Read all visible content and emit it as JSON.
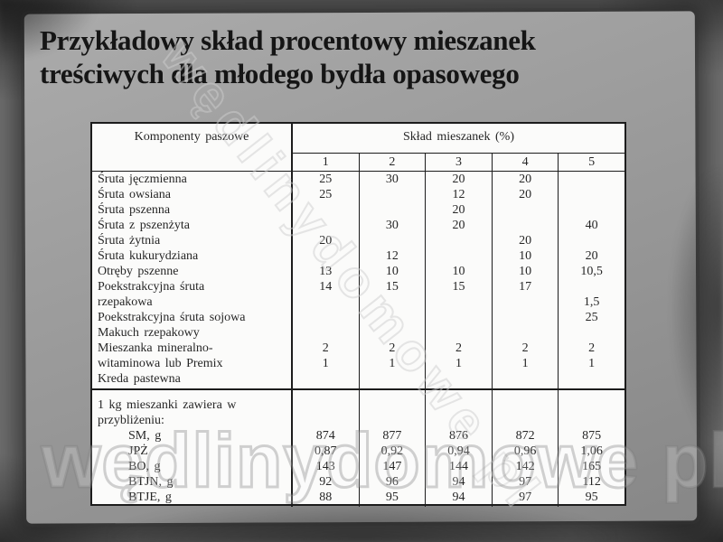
{
  "slide": {
    "title_line1": "Przykładowy skład procentowy mieszanek",
    "title_line2": "treściwych dla młodego bydła opasowego"
  },
  "table": {
    "col_header_left": "Komponenty paszowe",
    "col_header_right": "Skład mieszanek (%)",
    "mix_numbers": [
      "1",
      "2",
      "3",
      "4",
      "5"
    ],
    "section1_rows": [
      {
        "label": "Śruta jęczmienna",
        "indent": false,
        "values": [
          "25",
          "30",
          "20",
          "20",
          ""
        ]
      },
      {
        "label": "Śruta owsiana",
        "indent": false,
        "values": [
          "25",
          "",
          "12",
          "20",
          ""
        ]
      },
      {
        "label": "Śruta pszenna",
        "indent": false,
        "values": [
          "",
          "",
          "20",
          "",
          ""
        ]
      },
      {
        "label": "Śruta z pszenżyta",
        "indent": false,
        "values": [
          "",
          "30",
          "20",
          "",
          "40"
        ]
      },
      {
        "label": "Śruta żytnia",
        "indent": false,
        "values": [
          "20",
          "",
          "",
          "20",
          ""
        ]
      },
      {
        "label": "Śruta kukurydziana",
        "indent": false,
        "values": [
          "",
          "12",
          "",
          "10",
          "20"
        ]
      },
      {
        "label": "Otręby pszenne",
        "indent": false,
        "values": [
          "13",
          "10",
          "10",
          "10",
          "10,5"
        ]
      },
      {
        "label": "Poekstrakcyjna śruta",
        "indent": false,
        "values": [
          "14",
          "15",
          "15",
          "17",
          ""
        ]
      },
      {
        "label": "rzepakowa",
        "indent": false,
        "values": [
          "",
          "",
          "",
          "",
          "1,5"
        ]
      },
      {
        "label": "Poekstrakcyjna śruta sojowa",
        "indent": false,
        "values": [
          "",
          "",
          "",
          "",
          "25"
        ]
      },
      {
        "label": "Makuch rzepakowy",
        "indent": false,
        "values": [
          "",
          "",
          "",
          "",
          ""
        ]
      },
      {
        "label": "Mieszanka mineralno-",
        "indent": false,
        "values": [
          "2",
          "2",
          "2",
          "2",
          "2"
        ]
      },
      {
        "label": "witaminowa lub Premix",
        "indent": false,
        "values": [
          "1",
          "1",
          "1",
          "1",
          "1"
        ]
      },
      {
        "label": "Kreda pastewna",
        "indent": false,
        "values": [
          "",
          "",
          "",
          "",
          ""
        ]
      }
    ],
    "section2_rows": [
      {
        "label": "1 kg mieszanki zawiera w",
        "indent": false,
        "values": [
          "",
          "",
          "",
          "",
          ""
        ]
      },
      {
        "label": "przybliżeniu:",
        "indent": false,
        "values": [
          "",
          "",
          "",
          "",
          ""
        ]
      },
      {
        "label": "SM, g",
        "indent": true,
        "values": [
          "874",
          "877",
          "876",
          "872",
          "875"
        ]
      },
      {
        "label": "JPŻ",
        "indent": true,
        "values": [
          "0,87",
          "0,92",
          "0,94",
          "0,96",
          "1,06"
        ]
      },
      {
        "label": "BO, g",
        "indent": true,
        "values": [
          "143",
          "147",
          "144",
          "142",
          "165"
        ]
      },
      {
        "label": "BTJN, g",
        "indent": true,
        "values": [
          "92",
          "96",
          "94",
          "97",
          "112"
        ]
      },
      {
        "label": "BTJE, g",
        "indent": true,
        "values": [
          "88",
          "95",
          "94",
          "97",
          "95"
        ]
      }
    ]
  },
  "watermark": {
    "diagonal_text": "wędlinydomowe pl",
    "bottom_text": "wędlinydomowe pl"
  }
}
